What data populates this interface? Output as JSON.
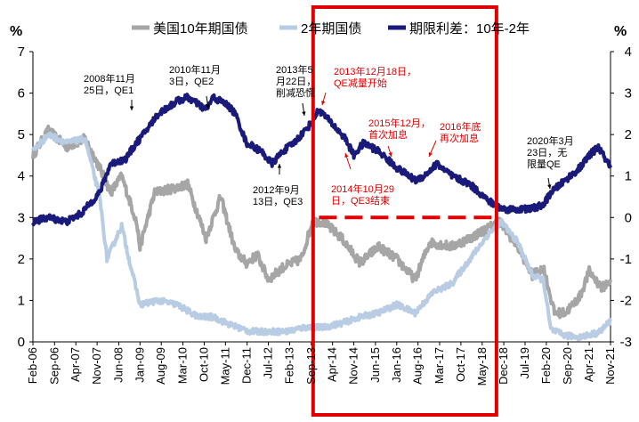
{
  "chart_data": {
    "type": "line",
    "units": {
      "left": "%",
      "right": "%"
    },
    "left_axis": {
      "ylim": [
        0,
        7
      ],
      "ticks": [
        "0",
        "1",
        "2",
        "3",
        "4",
        "5",
        "6",
        "7"
      ]
    },
    "right_axis": {
      "ylim": [
        -3,
        4
      ],
      "ticks": [
        "-3",
        "-2",
        "-1",
        "0",
        "1",
        "2",
        "3",
        "4"
      ]
    },
    "xlim": [
      2006.08,
      2021.83
    ],
    "x_tick_labels": [
      "Feb-06",
      "Sep-06",
      "Apr-07",
      "Nov-07",
      "Jun-08",
      "Jan-09",
      "Aug-09",
      "Mar-10",
      "Oct-10",
      "May-11",
      "Dec-11",
      "Jul-12",
      "Feb-13",
      "Sep-13",
      "Apr-14",
      "Nov-14",
      "Jun-15",
      "Jan-16",
      "Aug-16",
      "Mar-17",
      "Oct-17",
      "May-18",
      "Dec-18",
      "Jul-19",
      "Feb-20",
      "Sep-20",
      "Apr-21",
      "Nov-21"
    ],
    "x_tick_values": [
      2006.08,
      2006.67,
      2007.25,
      2007.83,
      2008.42,
      2009.0,
      2009.58,
      2010.17,
      2010.75,
      2011.33,
      2011.92,
      2012.5,
      2013.08,
      2013.67,
      2014.25,
      2014.83,
      2015.42,
      2016.0,
      2016.58,
      2017.17,
      2017.75,
      2018.33,
      2018.92,
      2019.5,
      2020.08,
      2020.67,
      2021.25,
      2021.83
    ],
    "series": [
      {
        "name": "美国10年期国债",
        "axis": "left",
        "color": "#a6a6a6",
        "x": [
          2006.08,
          2006.5,
          2007.0,
          2007.5,
          2007.9,
          2008.2,
          2008.5,
          2008.9,
          2009.0,
          2009.4,
          2009.9,
          2010.3,
          2010.8,
          2011.2,
          2011.6,
          2011.9,
          2012.2,
          2012.5,
          2012.9,
          2013.4,
          2013.7,
          2014.0,
          2014.5,
          2015.0,
          2015.5,
          2016.0,
          2016.5,
          2016.9,
          2017.5,
          2018.0,
          2018.8,
          2019.3,
          2019.7,
          2020.0,
          2020.3,
          2020.6,
          2021.0,
          2021.25,
          2021.6,
          2021.83
        ],
        "y": [
          4.5,
          5.1,
          4.7,
          4.9,
          4.2,
          3.6,
          4.0,
          2.9,
          2.3,
          3.6,
          3.7,
          3.8,
          2.5,
          3.5,
          2.2,
          1.9,
          2.1,
          1.5,
          1.8,
          2.0,
          2.9,
          2.9,
          2.5,
          1.9,
          2.3,
          2.0,
          1.5,
          2.4,
          2.3,
          2.5,
          2.9,
          2.3,
          1.6,
          1.8,
          0.7,
          0.7,
          1.1,
          1.7,
          1.3,
          1.5
        ]
      },
      {
        "name": "2年期国债",
        "axis": "left",
        "color": "#b8cce4",
        "x": [
          2006.08,
          2006.5,
          2007.0,
          2007.5,
          2007.9,
          2008.1,
          2008.5,
          2008.7,
          2009.0,
          2009.5,
          2010.0,
          2010.6,
          2011.0,
          2011.5,
          2012.0,
          2012.5,
          2013.0,
          2013.5,
          2014.0,
          2014.5,
          2015.0,
          2015.5,
          2016.0,
          2016.5,
          2017.0,
          2017.5,
          2018.0,
          2018.5,
          2018.85,
          2019.3,
          2019.7,
          2020.0,
          2020.2,
          2020.6,
          2021.0,
          2021.5,
          2021.83
        ],
        "y": [
          4.6,
          5.0,
          4.8,
          4.9,
          3.5,
          2.0,
          2.8,
          2.0,
          0.9,
          1.0,
          0.9,
          0.6,
          0.6,
          0.4,
          0.25,
          0.25,
          0.25,
          0.35,
          0.35,
          0.45,
          0.6,
          0.7,
          0.9,
          0.7,
          1.2,
          1.4,
          2.0,
          2.6,
          2.9,
          2.4,
          1.6,
          1.5,
          0.3,
          0.15,
          0.12,
          0.22,
          0.5
        ]
      },
      {
        "name": "期限利差：10年-2年",
        "axis": "right",
        "color": "#1a1a7a",
        "x": [
          2006.08,
          2006.5,
          2007.0,
          2007.4,
          2007.9,
          2008.2,
          2008.6,
          2008.9,
          2009.0,
          2009.5,
          2010.0,
          2010.3,
          2010.8,
          2011.0,
          2011.4,
          2011.6,
          2011.9,
          2012.3,
          2012.6,
          2012.9,
          2013.2,
          2013.6,
          2013.88,
          2014.2,
          2014.6,
          2014.83,
          2015.1,
          2015.5,
          2016.0,
          2016.5,
          2016.75,
          2017.1,
          2017.5,
          2018.0,
          2018.5,
          2018.9,
          2019.2,
          2019.6,
          2020.0,
          2020.2,
          2020.6,
          2021.0,
          2021.25,
          2021.5,
          2021.83
        ],
        "y": [
          -0.1,
          0.0,
          -0.1,
          0.1,
          0.6,
          1.3,
          1.4,
          1.8,
          1.9,
          2.5,
          2.8,
          2.9,
          2.6,
          2.9,
          2.7,
          2.5,
          1.8,
          1.6,
          1.3,
          1.6,
          1.8,
          2.2,
          2.6,
          2.3,
          1.9,
          1.5,
          1.8,
          1.6,
          1.2,
          0.9,
          1.0,
          1.3,
          1.0,
          0.8,
          0.4,
          0.2,
          0.2,
          0.2,
          0.3,
          0.6,
          0.9,
          1.2,
          1.5,
          1.7,
          1.2
        ]
      }
    ],
    "highlight_box": {
      "x_from": 2013.72,
      "x_to": 2018.72,
      "color": "#e00000"
    },
    "dashed_line": {
      "axis": "right",
      "y": 0,
      "x_from": 2013.88,
      "x_to": 2018.72,
      "color": "#e00000"
    },
    "annotations": [
      {
        "lines": [
          "2008年11月",
          "25日，QE1"
        ],
        "color": "#000000"
      },
      {
        "lines": [
          "2010年11月",
          "3日，QE2"
        ],
        "color": "#000000"
      },
      {
        "lines": [
          "2013年5",
          "月22日，",
          "削减恐慌"
        ],
        "color": "#000000"
      },
      {
        "lines": [
          "2012年9月",
          "13日，QE3"
        ],
        "color": "#000000"
      },
      {
        "lines": [
          "2013年12月18日，",
          "QE减量开始"
        ],
        "color": "#e00000"
      },
      {
        "lines": [
          "2014年10月29",
          "日，QE3结束"
        ],
        "color": "#e00000"
      },
      {
        "lines": [
          "2015年12月，",
          "首次加息"
        ],
        "color": "#e00000"
      },
      {
        "lines": [
          "2016年底",
          "再次加息"
        ],
        "color": "#e00000"
      },
      {
        "lines": [
          "2020年3月",
          "23日，无",
          "限量QE"
        ],
        "color": "#000000"
      }
    ]
  }
}
